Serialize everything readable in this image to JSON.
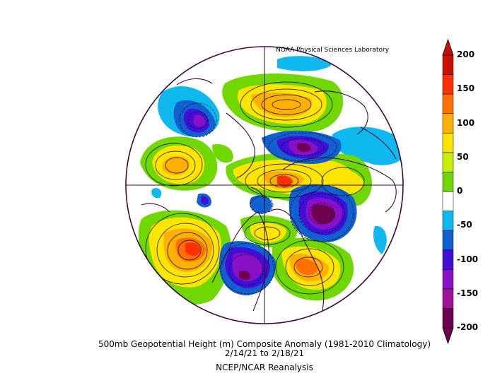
{
  "credit": "NOAA Physical Sciences Laboratory",
  "caption": {
    "line1": "500mb Geopotential Height (m) Composite Anomaly (1981-2010 Climatology)",
    "line2": "2/14/21  to 2/18/21",
    "line3": "NCEP/NCAR Reanalysis"
  },
  "colorbar": {
    "ticks": [
      "200",
      "150",
      "100",
      "50",
      "0",
      "-50",
      "-100",
      "-150",
      "-200"
    ],
    "colors": [
      "#6e0050",
      "#a0109a",
      "#8a10c8",
      "#4010d8",
      "#1060d0",
      "#10b8f0",
      "#ffffff",
      "#70d800",
      "#c8f000",
      "#ffe400",
      "#ffb000",
      "#ff7000",
      "#ff3000",
      "#c81000"
    ]
  }
}
